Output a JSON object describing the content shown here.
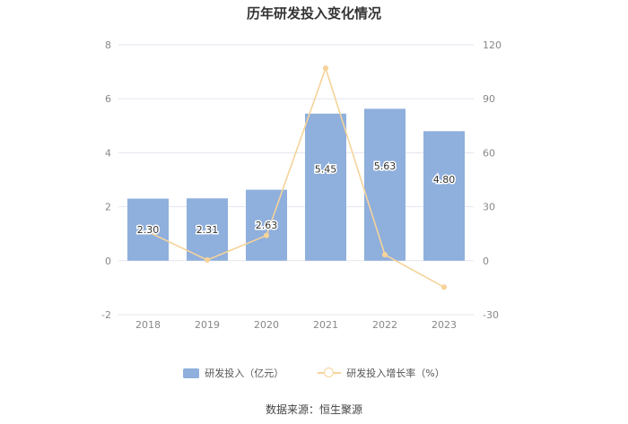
{
  "title": "历年研发投入变化情况",
  "source": "数据来源：恒生聚源",
  "colors": {
    "bar": "#8fafdd",
    "line": "#f5d39a",
    "grid": "#e3e6ee",
    "axis_text": "#888888"
  },
  "chart_data": {
    "type": "bar",
    "title": "历年研发投入变化情况",
    "categories": [
      "2018",
      "2019",
      "2020",
      "2021",
      "2022",
      "2023"
    ],
    "series": [
      {
        "name": "研发投入（亿元）",
        "type": "bar",
        "axis": "left",
        "values": [
          2.3,
          2.31,
          2.63,
          5.45,
          5.63,
          4.8
        ],
        "labels": [
          "2.30",
          "2.31",
          "2.63",
          "5.45",
          "5.63",
          "4.80"
        ]
      },
      {
        "name": "研发投入增长率（%）",
        "type": "line",
        "axis": "right",
        "values": [
          16,
          0.4,
          14,
          107,
          3.3,
          -14.7
        ]
      }
    ],
    "y_left": {
      "min": -2,
      "max": 8,
      "ticks": [
        "8",
        "6",
        "4",
        "2",
        "0",
        "-2"
      ]
    },
    "y_right": {
      "min": -30,
      "max": 120,
      "ticks": [
        "120",
        "90",
        "60",
        "30",
        "0",
        "-30"
      ]
    },
    "grid": true,
    "legend_position": "bottom"
  }
}
